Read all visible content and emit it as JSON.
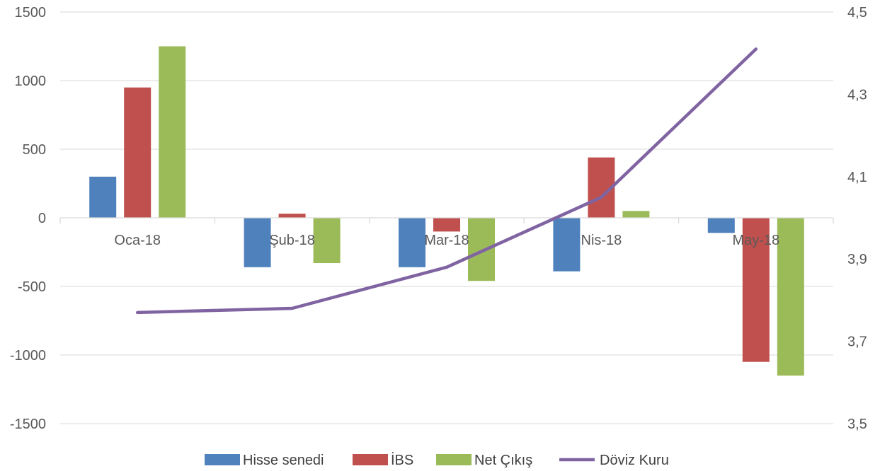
{
  "chart_data": {
    "type": "bar",
    "categories": [
      "Oca-18",
      "Şub-18",
      "Mar-18",
      "Nis-18",
      "May-18"
    ],
    "series": [
      {
        "name": "Hisse senedi",
        "type": "bar",
        "axis": "left",
        "color": "#4F81BD",
        "values": [
          300,
          -360,
          -360,
          -390,
          -110
        ]
      },
      {
        "name": "İBS",
        "type": "bar",
        "axis": "left",
        "color": "#C0504D",
        "values": [
          950,
          30,
          -100,
          440,
          -1050
        ]
      },
      {
        "name": "Net Çıkış",
        "type": "bar",
        "axis": "left",
        "color": "#9BBB59",
        "values": [
          1250,
          -330,
          -460,
          50,
          -1150
        ]
      },
      {
        "name": "Döviz Kuru",
        "type": "line",
        "axis": "right",
        "color": "#8064A2",
        "values": [
          3.77,
          3.78,
          3.88,
          4.05,
          4.41
        ]
      }
    ],
    "y_left": {
      "min": -1500,
      "max": 1500,
      "ticks": [
        "1500",
        "1000",
        "500",
        "0",
        "-500",
        "-1000",
        "-1500"
      ]
    },
    "y_right": {
      "min": 3.5,
      "max": 4.5,
      "ticks": [
        "4,5",
        "4,3",
        "4,1",
        "3,9",
        "3,7",
        "3,5"
      ]
    },
    "grid": true,
    "legend_position": "bottom"
  }
}
